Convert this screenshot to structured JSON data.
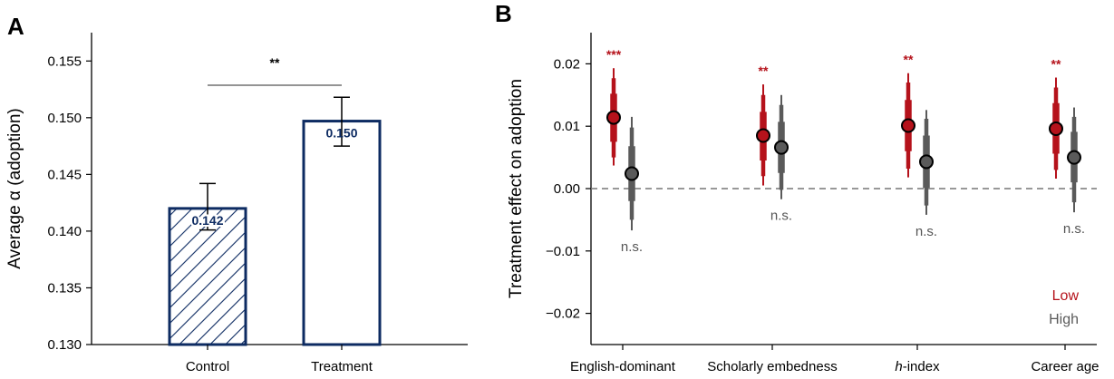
{
  "colors": {
    "navy": "#0d2b62",
    "low": "#b5121b",
    "high": "#5a5a5a",
    "ns": "#555555"
  },
  "chart_data": [
    {
      "panel": "A",
      "type": "bar",
      "title": "",
      "ylabel": "Average α (adoption)",
      "xlabel": "",
      "ylim": [
        0.13,
        0.1575
      ],
      "yticks": [
        "0.130",
        "0.135",
        "0.140",
        "0.145",
        "0.150",
        "0.155"
      ],
      "categories": [
        "Control",
        "Treatment"
      ],
      "values": [
        0.142,
        0.1497
      ],
      "value_labels": [
        "0.142",
        "0.150"
      ],
      "error_low": [
        0.1401,
        0.1475
      ],
      "error_high": [
        0.1442,
        0.1518
      ],
      "hatched": [
        true,
        false
      ],
      "significance": "**"
    },
    {
      "panel": "B",
      "type": "scatter",
      "title": "",
      "ylabel": "Treatment effect on adoption",
      "xlabel": "",
      "ylim": [
        -0.025,
        0.025
      ],
      "yticks": [
        "−0.02",
        "−0.01",
        "0.00",
        "0.01",
        "0.02"
      ],
      "reference_line": 0,
      "categories": [
        "English-dominant",
        "Scholarly embedness",
        "h-index",
        "Career age"
      ],
      "legend": [
        "Low",
        "High"
      ],
      "legend_position": "bottom-right",
      "series": [
        {
          "name": "Low",
          "estimates": [
            0.0114,
            0.0085,
            0.0101,
            0.0096
          ],
          "ci95": [
            [
              0.0037,
              0.0193
            ],
            [
              0.0005,
              0.0167
            ],
            [
              0.0018,
              0.0185
            ],
            [
              0.0016,
              0.0178
            ]
          ],
          "ci90": [
            [
              0.005,
              0.0177
            ],
            [
              0.002,
              0.015
            ],
            [
              0.0032,
              0.017
            ],
            [
              0.003,
              0.0162
            ]
          ],
          "ci50": [
            [
              0.0075,
              0.0152
            ],
            [
              0.0045,
              0.0123
            ],
            [
              0.006,
              0.0142
            ],
            [
              0.0056,
              0.0137
            ]
          ],
          "significance": [
            "***",
            "**",
            "**",
            "**"
          ]
        },
        {
          "name": "High",
          "estimates": [
            0.0024,
            0.0066,
            0.0043,
            0.005
          ],
          "ci95": [
            [
              -0.0067,
              0.0115
            ],
            [
              -0.0017,
              0.015
            ],
            [
              -0.0042,
              0.0126
            ],
            [
              -0.0038,
              0.013
            ]
          ],
          "ci90": [
            [
              -0.005,
              0.0098
            ],
            [
              -0.0002,
              0.0134
            ],
            [
              -0.0027,
              0.0112
            ],
            [
              -0.0022,
              0.0115
            ]
          ],
          "ci50": [
            [
              -0.002,
              0.0068
            ],
            [
              0.0025,
              0.0107
            ],
            [
              0.0001,
              0.0085
            ],
            [
              0.001,
              0.0091
            ]
          ],
          "significance": [
            "n.s.",
            "n.s.",
            "n.s.",
            "n.s."
          ]
        }
      ]
    }
  ]
}
